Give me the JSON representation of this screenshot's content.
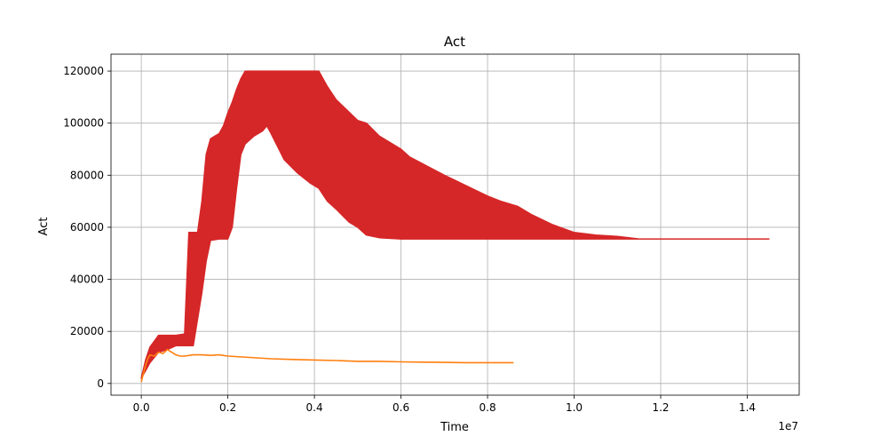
{
  "chart_data": {
    "type": "line",
    "title": "Act",
    "xlabel": "Time",
    "ylabel": "Act",
    "x_offset_label": "1e7",
    "xlim": [
      -0.07,
      1.52
    ],
    "ylim": [
      -4500,
      126500
    ],
    "x_ticks": [
      0.0,
      0.2,
      0.4,
      0.6,
      0.8,
      1.0,
      1.2,
      1.4
    ],
    "x_tick_labels": [
      "0.0",
      "0.2",
      "0.4",
      "0.6",
      "0.8",
      "1.0",
      "1.2",
      "1.4"
    ],
    "y_ticks": [
      0,
      20000,
      40000,
      60000,
      80000,
      100000,
      120000
    ],
    "y_tick_labels": [
      "0",
      "20000",
      "40000",
      "60000",
      "80000",
      "100000",
      "120000"
    ],
    "grid": true,
    "series": [
      {
        "color": "#d62728",
        "style": "band",
        "upper": [
          [
            0.0,
            2000
          ],
          [
            0.01,
            9000
          ],
          [
            0.02,
            14000
          ],
          [
            0.04,
            18500
          ],
          [
            0.08,
            18500
          ],
          [
            0.1,
            19000
          ],
          [
            0.11,
            58000
          ],
          [
            0.12,
            58000
          ],
          [
            0.13,
            58000
          ],
          [
            0.14,
            70000
          ],
          [
            0.15,
            88000
          ],
          [
            0.16,
            94000
          ],
          [
            0.17,
            95000
          ],
          [
            0.18,
            96000
          ],
          [
            0.19,
            99000
          ],
          [
            0.2,
            104000
          ],
          [
            0.21,
            108000
          ],
          [
            0.22,
            113000
          ],
          [
            0.23,
            117000
          ],
          [
            0.24,
            120000
          ],
          [
            0.3,
            120000
          ],
          [
            0.36,
            120000
          ],
          [
            0.41,
            120000
          ],
          [
            0.43,
            114000
          ],
          [
            0.45,
            109000
          ],
          [
            0.5,
            101000
          ],
          [
            0.52,
            100000
          ],
          [
            0.55,
            95000
          ],
          [
            0.6,
            90000
          ],
          [
            0.62,
            87000
          ],
          [
            0.7,
            80000
          ],
          [
            0.75,
            76000
          ],
          [
            0.8,
            72000
          ],
          [
            0.83,
            70000
          ],
          [
            0.87,
            68000
          ],
          [
            0.9,
            65000
          ],
          [
            0.95,
            61000
          ],
          [
            1.0,
            58000
          ],
          [
            1.05,
            57000
          ],
          [
            1.1,
            56500
          ],
          [
            1.15,
            55500
          ],
          [
            1.2,
            55500
          ],
          [
            1.3,
            55500
          ],
          [
            1.4,
            55500
          ],
          [
            1.45,
            55500
          ]
        ],
        "lower": [
          [
            0.0,
            2000
          ],
          [
            0.01,
            5000
          ],
          [
            0.02,
            8000
          ],
          [
            0.04,
            12000
          ],
          [
            0.06,
            13000
          ],
          [
            0.08,
            14500
          ],
          [
            0.1,
            14500
          ],
          [
            0.12,
            14500
          ],
          [
            0.14,
            35000
          ],
          [
            0.15,
            47000
          ],
          [
            0.16,
            55000
          ],
          [
            0.18,
            55500
          ],
          [
            0.2,
            55500
          ],
          [
            0.21,
            60000
          ],
          [
            0.22,
            75000
          ],
          [
            0.23,
            88000
          ],
          [
            0.24,
            92000
          ],
          [
            0.26,
            95000
          ],
          [
            0.28,
            97000
          ],
          [
            0.29,
            99000
          ],
          [
            0.3,
            96000
          ],
          [
            0.33,
            86000
          ],
          [
            0.36,
            81000
          ],
          [
            0.39,
            77000
          ],
          [
            0.41,
            75000
          ],
          [
            0.43,
            70000
          ],
          [
            0.45,
            67000
          ],
          [
            0.48,
            62000
          ],
          [
            0.5,
            60000
          ],
          [
            0.52,
            57000
          ],
          [
            0.55,
            56000
          ],
          [
            0.6,
            55500
          ],
          [
            0.7,
            55500
          ],
          [
            0.8,
            55500
          ],
          [
            0.9,
            55500
          ],
          [
            1.0,
            55500
          ],
          [
            1.1,
            55500
          ],
          [
            1.2,
            55500
          ],
          [
            1.3,
            55500
          ],
          [
            1.45,
            55500
          ]
        ]
      },
      {
        "color": "#ff7f0e",
        "style": "line",
        "points": [
          [
            0.0,
            500
          ],
          [
            0.005,
            4000
          ],
          [
            0.01,
            7000
          ],
          [
            0.015,
            9500
          ],
          [
            0.02,
            11000
          ],
          [
            0.03,
            10500
          ],
          [
            0.04,
            12000
          ],
          [
            0.05,
            11500
          ],
          [
            0.06,
            13000
          ],
          [
            0.07,
            12000
          ],
          [
            0.08,
            11000
          ],
          [
            0.09,
            10500
          ],
          [
            0.1,
            10500
          ],
          [
            0.12,
            11000
          ],
          [
            0.14,
            11000
          ],
          [
            0.16,
            10800
          ],
          [
            0.18,
            11000
          ],
          [
            0.2,
            10500
          ],
          [
            0.25,
            10000
          ],
          [
            0.3,
            9500
          ],
          [
            0.35,
            9200
          ],
          [
            0.4,
            9000
          ],
          [
            0.45,
            8800
          ],
          [
            0.5,
            8500
          ],
          [
            0.55,
            8500
          ],
          [
            0.6,
            8300
          ],
          [
            0.65,
            8200
          ],
          [
            0.7,
            8100
          ],
          [
            0.75,
            8000
          ],
          [
            0.8,
            8000
          ],
          [
            0.86,
            8000
          ]
        ]
      }
    ]
  }
}
